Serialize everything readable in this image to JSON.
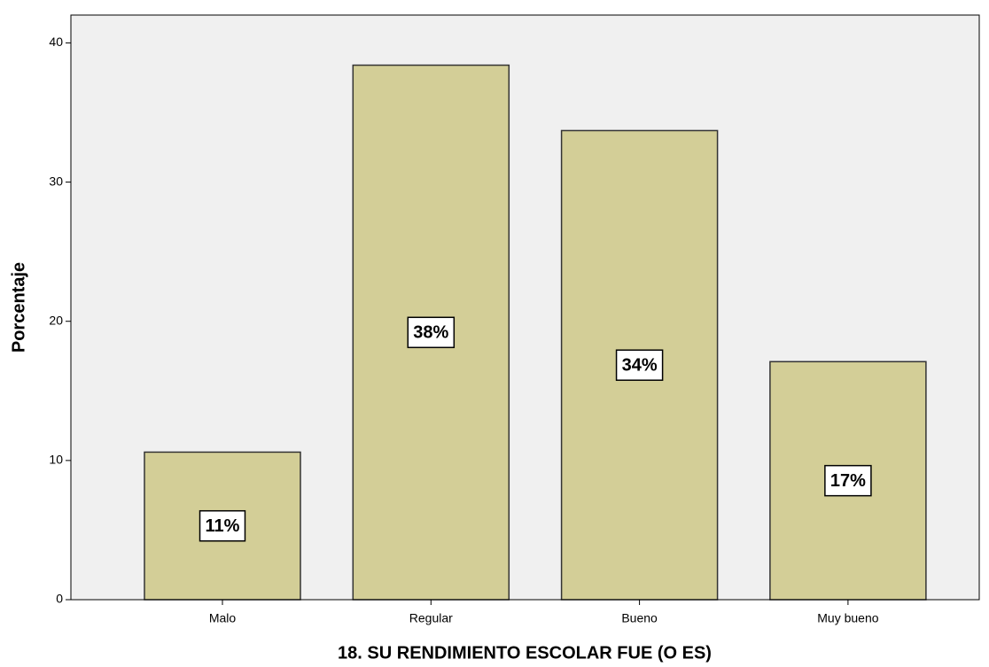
{
  "chart_data": {
    "type": "bar",
    "x_label": "18. SU RENDIMIENTO ESCOLAR FUE (O ES)",
    "y_label": "Porcentaje",
    "categories": [
      "Malo",
      "Regular",
      "Bueno",
      "Muy bueno"
    ],
    "values": [
      10.6,
      38.4,
      33.7,
      17.1
    ],
    "value_labels": [
      "11%",
      "38%",
      "34%",
      "17%"
    ],
    "color": "#d3ce97",
    "ylim": [
      0,
      42
    ],
    "yticks": [
      0,
      10,
      20,
      30,
      40
    ],
    "grid": false
  }
}
